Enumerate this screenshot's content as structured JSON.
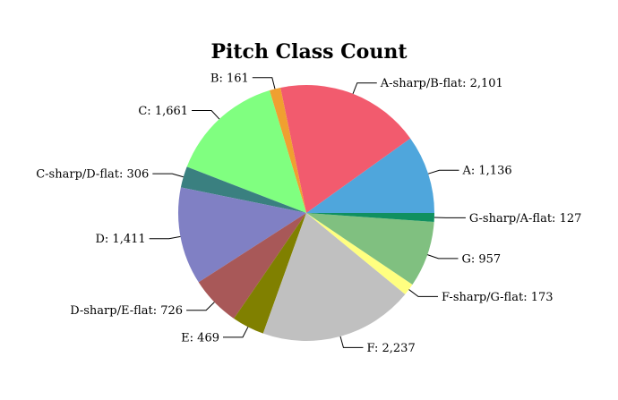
{
  "chart_data": {
    "type": "pie",
    "title": "Pitch Class Count",
    "start_angle_deg": 0,
    "direction": "counterclockwise",
    "slices": [
      {
        "label": "A",
        "value": 1136,
        "value_text": "1,136",
        "color": "#4fa6dc"
      },
      {
        "label": "A-sharp/B-flat",
        "value": 2101,
        "value_text": "2,101",
        "color": "#f25b6e"
      },
      {
        "label": "B",
        "value": 161,
        "value_text": "161",
        "color": "#f0a030"
      },
      {
        "label": "C",
        "value": 1661,
        "value_text": "1,661",
        "color": "#80ff80"
      },
      {
        "label": "C-sharp/D-flat",
        "value": 306,
        "value_text": "306",
        "color": "#3a8080"
      },
      {
        "label": "D",
        "value": 1411,
        "value_text": "1,411",
        "color": "#8080c4"
      },
      {
        "label": "D-sharp/E-flat",
        "value": 726,
        "value_text": "726",
        "color": "#a85858"
      },
      {
        "label": "E",
        "value": 469,
        "value_text": "469",
        "color": "#808000"
      },
      {
        "label": "F",
        "value": 2237,
        "value_text": "2,237",
        "color": "#c0c0c0"
      },
      {
        "label": "F-sharp/G-flat",
        "value": 173,
        "value_text": "173",
        "color": "#ffff80"
      },
      {
        "label": "G",
        "value": 957,
        "value_text": "957",
        "color": "#80c080"
      },
      {
        "label": "G-sharp/A-flat",
        "value": 127,
        "value_text": "127",
        "color": "#109060"
      }
    ]
  }
}
